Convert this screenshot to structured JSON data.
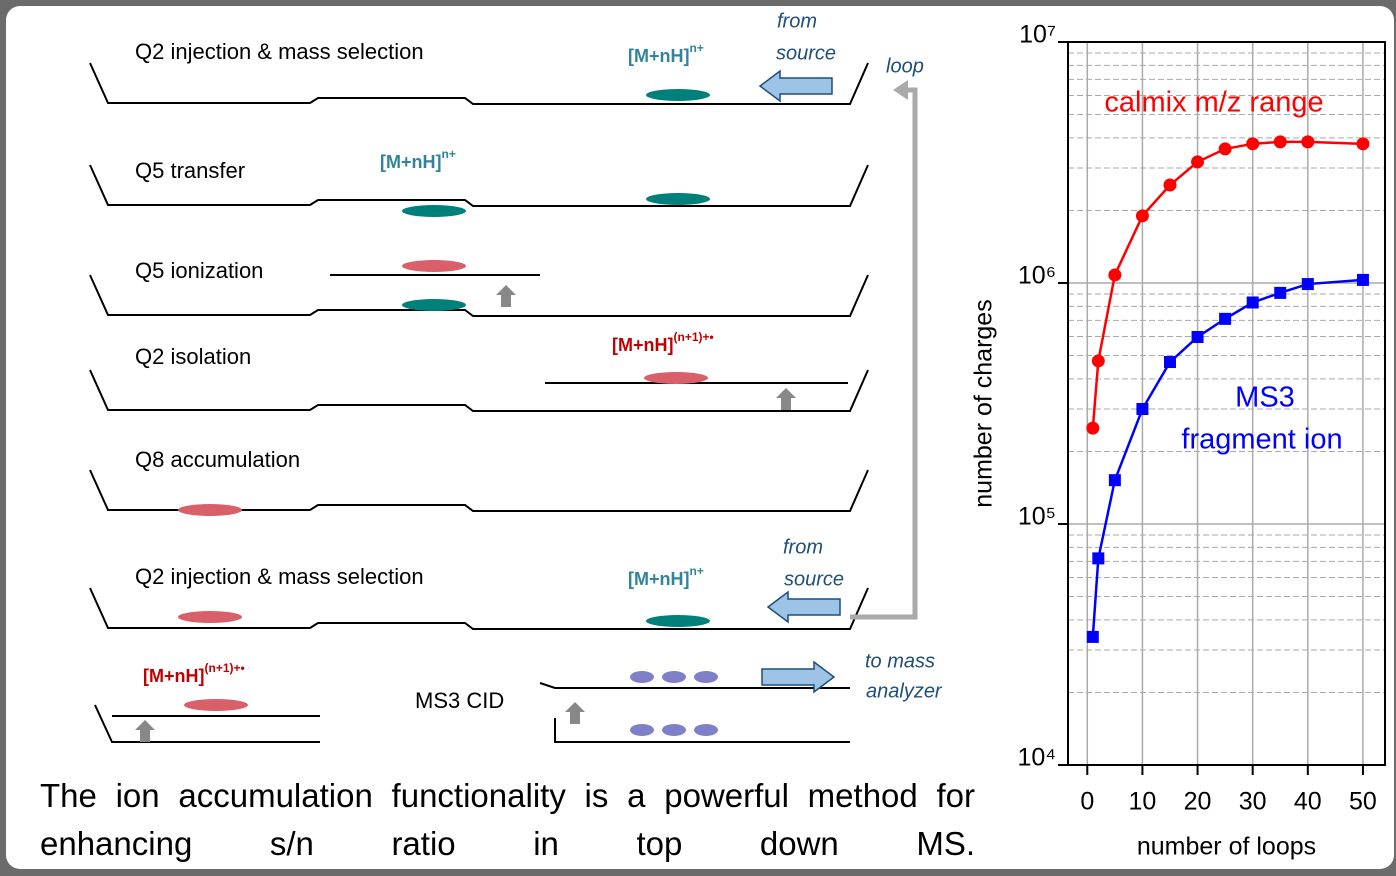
{
  "diagram": {
    "stages": [
      "Q2 injection & mass selection",
      "Q5 transfer",
      "Q5 ionization",
      "Q2 isolation",
      "Q8 accumulation",
      "Q2 injection & mass selection",
      "MS3 CID"
    ],
    "ion_labels": [
      {
        "base": "[M+nH]",
        "sup": "n+"
      },
      {
        "base": "[M+nH]",
        "sup": "n+"
      },
      {
        "base": "[M+nH]",
        "sup": "(n+1)+•"
      },
      {
        "base": "[M+nH]",
        "sup": "n+"
      },
      {
        "base": "[M+nH]",
        "sup": "(n+1)+•"
      }
    ],
    "notes": [
      [
        "from",
        "source"
      ],
      [
        "loop"
      ],
      [
        "from",
        "source"
      ],
      [
        "to mass",
        "analyzer"
      ]
    ],
    "caption": "The ion accumulation functionality is a powerful method for enhancing s/n ratio in top down MS."
  },
  "chart_data": {
    "type": "line",
    "x_label": "number of loops",
    "y_label": "number of charges",
    "log_y": true,
    "grid": true,
    "xlim": [
      -3.5,
      54
    ],
    "ylim": [
      10000,
      10000000
    ],
    "xticks": [
      0,
      10,
      20,
      30,
      40,
      50
    ],
    "yticks": [
      {
        "value": 10000,
        "label": "10⁴"
      },
      {
        "value": 100000,
        "label": "10⁵"
      },
      {
        "value": 1000000,
        "label": "10⁶"
      },
      {
        "value": 10000000,
        "label": "10⁷"
      }
    ],
    "x": [
      1,
      2,
      5,
      10,
      15,
      20,
      25,
      30,
      35,
      40,
      50
    ],
    "series": [
      {
        "color": "#ff0000",
        "marker": "circle",
        "values": [
          250000,
          475000,
          1080000,
          1900000,
          2550000,
          3180000,
          3600000,
          3780000,
          3850000,
          3850000,
          3780000
        ]
      },
      {
        "color": "#0000ff",
        "marker": "square",
        "values": [
          34000,
          72000,
          152000,
          300000,
          470000,
          597000,
          710000,
          830000,
          910000,
          990000,
          1030000
        ]
      }
    ],
    "annotations": [
      {
        "text": "calmix m/z range",
        "color": "#ff0000"
      },
      {
        "text": "MS3",
        "color": "#0000ff"
      },
      {
        "text": "fragment ion",
        "color": "#0000ff"
      }
    ]
  }
}
